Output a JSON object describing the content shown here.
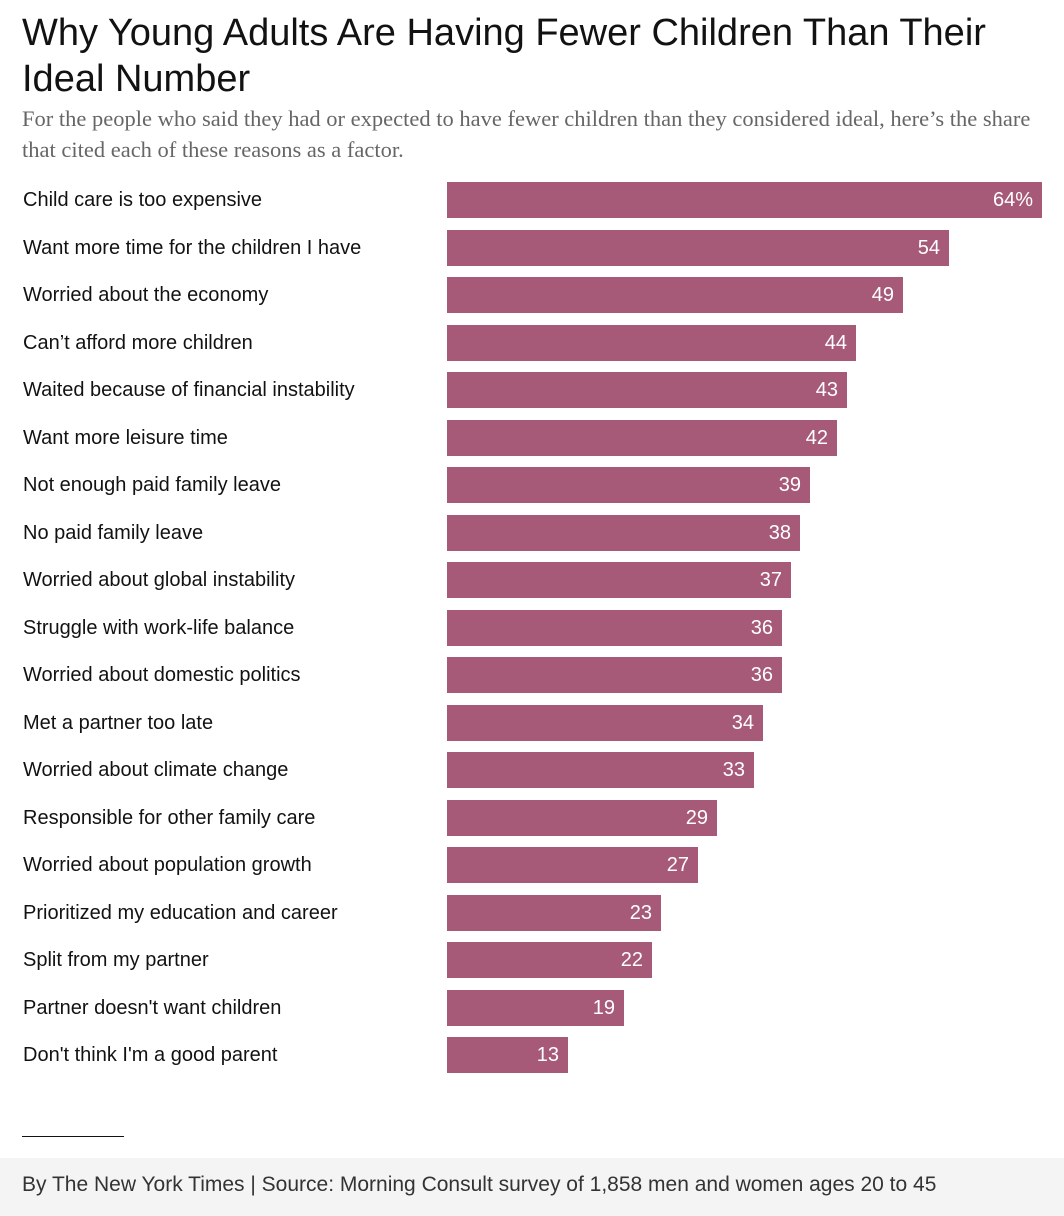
{
  "title": "Why Young Adults Are Having Fewer Children Than Their Ideal Number",
  "subtitle": "For the people who said they had or expected to have fewer children than they considered ideal, here’s the share that cited each of these reasons as a factor.",
  "colors": {
    "bar": "#a65a77",
    "bar_label": "#ffffff",
    "text": "#121212",
    "subtitle": "#666666",
    "footer_background": "#f4f4f4"
  },
  "chart_data": {
    "type": "bar",
    "orientation": "horizontal",
    "unit": "%",
    "categories": [
      "Child care is too expensive",
      "Want more time for the children I have",
      "Worried about the economy",
      "Can’t afford more children",
      "Waited because of financial instability",
      "Want more leisure time",
      "Not enough paid family leave",
      "No paid family leave",
      "Worried about global instability",
      "Struggle with work-life balance",
      "Worried about domestic politics",
      "Met a partner too late",
      "Worried about climate change",
      "Responsible for other family care",
      "Worried about population growth",
      "Prioritized my education and career",
      "Split from my partner",
      "Partner doesn't want children",
      "Don't think I'm a good parent"
    ],
    "values": [
      64,
      54,
      49,
      44,
      43,
      42,
      39,
      38,
      37,
      36,
      36,
      34,
      33,
      29,
      27,
      23,
      22,
      19,
      13
    ],
    "value_labels": [
      "64%",
      "54",
      "49",
      "44",
      "43",
      "42",
      "39",
      "38",
      "37",
      "36",
      "36",
      "34",
      "33",
      "29",
      "27",
      "23",
      "22",
      "19",
      "13"
    ],
    "xlim": [
      0,
      64
    ],
    "grid": false,
    "legend": "none"
  },
  "footer": {
    "credit": "By The New York Times | Source: Morning Consult survey of 1,858 men and women ages 20 to 45"
  }
}
